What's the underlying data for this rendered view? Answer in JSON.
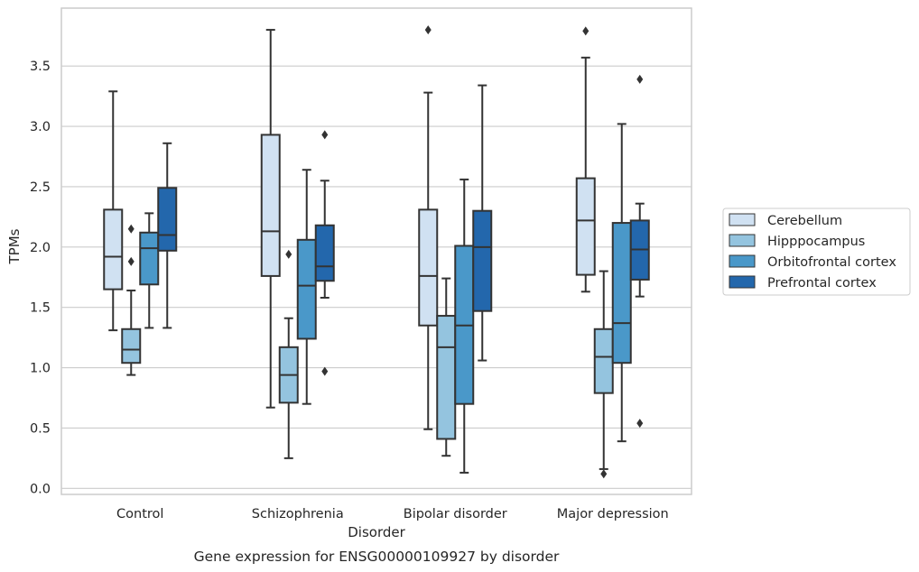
{
  "chart_data": {
    "type": "boxplot",
    "caption": "Gene expression for ENSG00000109927 by disorder",
    "xlabel": "Disorder",
    "ylabel": "TPMs",
    "ylim": [
      -0.05,
      3.98
    ],
    "yticks": [
      0.0,
      0.5,
      1.0,
      1.5,
      2.0,
      2.5,
      3.0,
      3.5
    ],
    "ytick_labels": [
      "0.0",
      "0.5",
      "1.0",
      "1.5",
      "2.0",
      "2.5",
      "3.0",
      "3.5"
    ],
    "grid": "horizontal",
    "legend_position": "right",
    "categories": [
      "Control",
      "Schizophrenia",
      "Bipolar disorder",
      "Major depression"
    ],
    "series": [
      {
        "name": "Cerebellum",
        "color": "#d0e1f2",
        "boxes": [
          {
            "whisker_low": 1.31,
            "q1": 1.65,
            "median": 1.92,
            "q3": 2.31,
            "whisker_high": 3.29,
            "outliers": []
          },
          {
            "whisker_low": 0.67,
            "q1": 1.76,
            "median": 2.13,
            "q3": 2.93,
            "whisker_high": 3.8,
            "outliers": []
          },
          {
            "whisker_low": 0.49,
            "q1": 1.35,
            "median": 1.76,
            "q3": 2.31,
            "whisker_high": 3.28,
            "outliers": [
              3.8
            ]
          },
          {
            "whisker_low": 1.63,
            "q1": 1.77,
            "median": 2.22,
            "q3": 2.57,
            "whisker_high": 3.57,
            "outliers": [
              3.79
            ]
          }
        ]
      },
      {
        "name": "Hipppocampus",
        "color": "#94c4df",
        "boxes": [
          {
            "whisker_low": 0.94,
            "q1": 1.04,
            "median": 1.15,
            "q3": 1.32,
            "whisker_high": 1.64,
            "outliers": [
              1.88,
              2.15
            ]
          },
          {
            "whisker_low": 0.25,
            "q1": 0.71,
            "median": 0.94,
            "q3": 1.17,
            "whisker_high": 1.41,
            "outliers": [
              1.94
            ]
          },
          {
            "whisker_low": 0.27,
            "q1": 0.41,
            "median": 1.17,
            "q3": 1.43,
            "whisker_high": 1.74,
            "outliers": []
          },
          {
            "whisker_low": 0.16,
            "q1": 0.79,
            "median": 1.09,
            "q3": 1.32,
            "whisker_high": 1.8,
            "outliers": [
              0.12
            ]
          }
        ]
      },
      {
        "name": "Orbitofrontal cortex",
        "color": "#4a98c9",
        "boxes": [
          {
            "whisker_low": 1.33,
            "q1": 1.69,
            "median": 1.99,
            "q3": 2.12,
            "whisker_high": 2.28,
            "outliers": []
          },
          {
            "whisker_low": 0.7,
            "q1": 1.24,
            "median": 1.68,
            "q3": 2.06,
            "whisker_high": 2.64,
            "outliers": []
          },
          {
            "whisker_low": 0.13,
            "q1": 0.7,
            "median": 1.35,
            "q3": 2.01,
            "whisker_high": 2.56,
            "outliers": []
          },
          {
            "whisker_low": 0.39,
            "q1": 1.04,
            "median": 1.37,
            "q3": 2.2,
            "whisker_high": 3.02,
            "outliers": []
          }
        ]
      },
      {
        "name": "Prefrontal cortex",
        "color": "#2367ac",
        "boxes": [
          {
            "whisker_low": 1.33,
            "q1": 1.97,
            "median": 2.1,
            "q3": 2.49,
            "whisker_high": 2.86,
            "outliers": []
          },
          {
            "whisker_low": 1.58,
            "q1": 1.72,
            "median": 1.84,
            "q3": 2.18,
            "whisker_high": 2.55,
            "outliers": [
              0.97,
              2.93
            ]
          },
          {
            "whisker_low": 1.06,
            "q1": 1.47,
            "median": 2.0,
            "q3": 2.3,
            "whisker_high": 3.34,
            "outliers": []
          },
          {
            "whisker_low": 1.59,
            "q1": 1.73,
            "median": 1.98,
            "q3": 2.22,
            "whisker_high": 2.36,
            "outliers": [
              0.54,
              3.39
            ]
          }
        ]
      }
    ],
    "style": {
      "line_color": "#333333",
      "grid_color": "#cccccc",
      "spine_color": "#cccccc"
    }
  }
}
